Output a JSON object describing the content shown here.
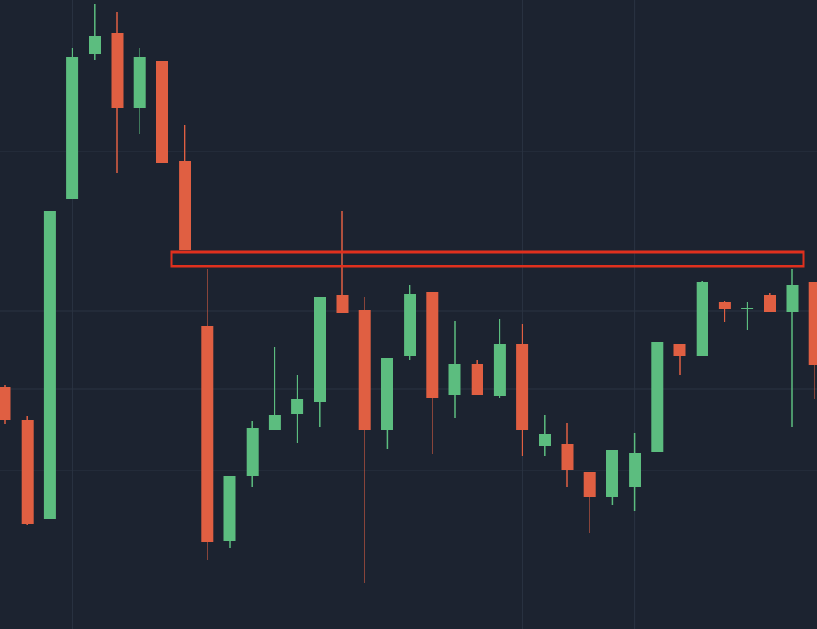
{
  "chart_data": {
    "type": "candlestick",
    "open": [
      304,
      262,
      138,
      540,
      721,
      747,
      653,
      713,
      587,
      380,
      110,
      192,
      250,
      270,
      285,
      419,
      400,
      250,
      342,
      423,
      294,
      333,
      292,
      357,
      230,
      232,
      197,
      166,
      178,
      222,
      358,
      342,
      410,
      402,
      419,
      398,
      435
    ],
    "high": [
      306,
      267,
      524,
      729,
      784,
      774,
      729,
      713,
      632,
      451,
      192,
      261,
      354,
      318,
      416,
      524,
      417,
      340,
      432,
      423,
      386,
      337,
      389,
      382,
      269,
      258,
      197,
      224,
      246,
      360,
      358,
      437,
      412,
      410,
      421,
      452,
      435
    ],
    "low": [
      257,
      130,
      138,
      540,
      714,
      572,
      621,
      585,
      476,
      86,
      101,
      178,
      250,
      233,
      254,
      397,
      58,
      226,
      337,
      220,
      265,
      293,
      290,
      217,
      217,
      178,
      120,
      155,
      148,
      222,
      318,
      342,
      385,
      375,
      398,
      254,
      289
    ],
    "close": [
      262,
      132,
      524,
      717,
      744,
      653,
      717,
      585,
      476,
      109,
      192,
      252,
      268,
      288,
      416,
      397,
      249,
      340,
      420,
      290,
      332,
      293,
      357,
      250,
      245,
      200,
      166,
      224,
      221,
      360,
      342,
      435,
      401,
      403,
      398,
      431,
      331
    ],
    "up_color": "#5cbd7f",
    "down_color": "#e05f42",
    "ylim": [
      0,
      789
    ],
    "yticks": [
      599,
      399,
      301,
      199
    ],
    "xticks": [
      3,
      23,
      28
    ],
    "grid": true,
    "zone": {
      "low": 455,
      "high": 473,
      "color": "#e0301e"
    }
  }
}
